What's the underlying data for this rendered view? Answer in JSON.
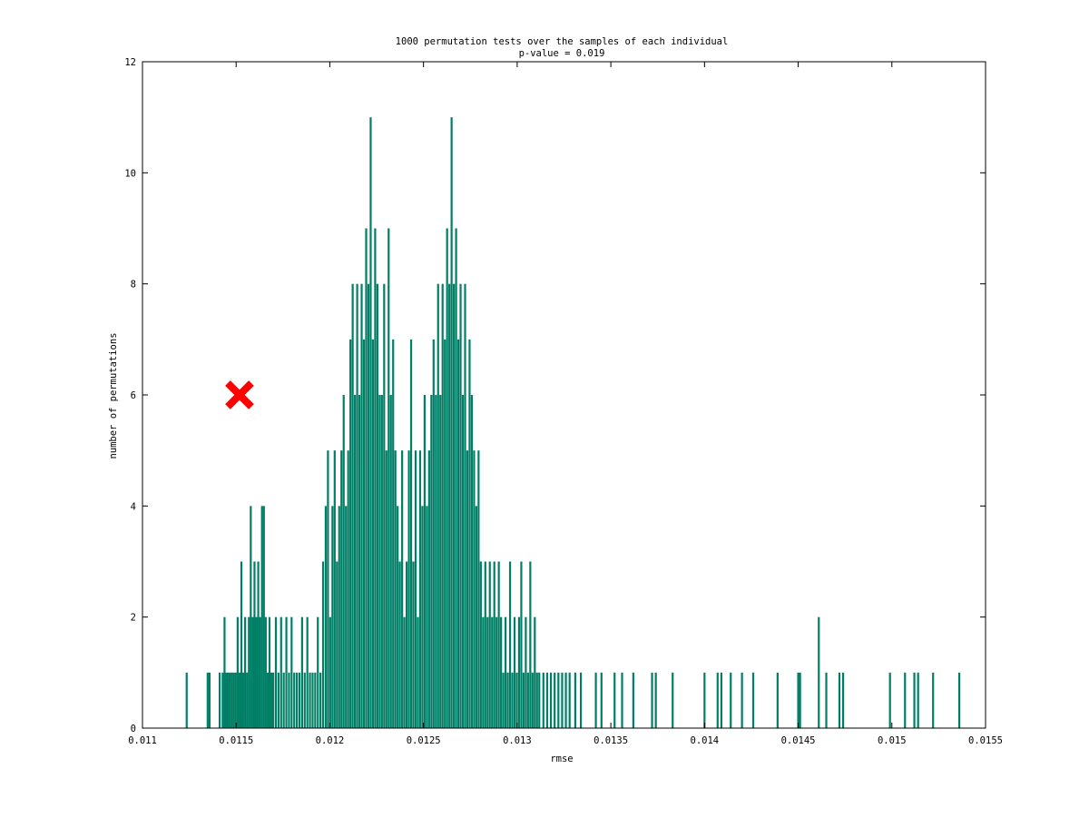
{
  "chart_data": {
    "type": "histogram",
    "title": "1000 permutation tests over the samples of each individual",
    "subtitle": "p-value = 0.019",
    "xlabel": "rmse",
    "ylabel": "number of permutations",
    "xlim": [
      0.011,
      0.0155
    ],
    "ylim": [
      0,
      12
    ],
    "x_ticks": [
      "0.011",
      "0.0115",
      "0.012",
      "0.0125",
      "0.013",
      "0.0135",
      "0.014",
      "0.0145",
      "0.015",
      "0.0155"
    ],
    "y_ticks": [
      "0",
      "2",
      "4",
      "6",
      "8",
      "10",
      "12"
    ],
    "grid": false,
    "bar_color": "#007f66",
    "marker": {
      "shape": "x",
      "color": "#ff0000",
      "x": 0.011518,
      "y": 6
    },
    "bars": [
      [
        0.011236,
        1
      ],
      [
        0.011348,
        1
      ],
      [
        0.011358,
        1
      ],
      [
        0.011412,
        1
      ],
      [
        0.011428,
        1
      ],
      [
        0.011438,
        2
      ],
      [
        0.011448,
        1
      ],
      [
        0.011458,
        1
      ],
      [
        0.011468,
        1
      ],
      [
        0.011478,
        1
      ],
      [
        0.011488,
        1
      ],
      [
        0.011498,
        1
      ],
      [
        0.011508,
        2
      ],
      [
        0.011518,
        1
      ],
      [
        0.011528,
        3
      ],
      [
        0.011538,
        1
      ],
      [
        0.011548,
        2
      ],
      [
        0.011558,
        1
      ],
      [
        0.011568,
        2
      ],
      [
        0.011578,
        4
      ],
      [
        0.011588,
        2
      ],
      [
        0.011598,
        3
      ],
      [
        0.011608,
        2
      ],
      [
        0.011618,
        3
      ],
      [
        0.011628,
        2
      ],
      [
        0.011638,
        4
      ],
      [
        0.011648,
        4
      ],
      [
        0.011658,
        2
      ],
      [
        0.011668,
        1
      ],
      [
        0.011678,
        2
      ],
      [
        0.011688,
        1
      ],
      [
        0.011698,
        1
      ],
      [
        0.011712,
        2
      ],
      [
        0.011726,
        1
      ],
      [
        0.01174,
        2
      ],
      [
        0.011754,
        1
      ],
      [
        0.011768,
        2
      ],
      [
        0.011782,
        1
      ],
      [
        0.011796,
        2
      ],
      [
        0.01181,
        1
      ],
      [
        0.011824,
        1
      ],
      [
        0.011838,
        1
      ],
      [
        0.011852,
        2
      ],
      [
        0.011866,
        1
      ],
      [
        0.01188,
        2
      ],
      [
        0.011894,
        1
      ],
      [
        0.011908,
        1
      ],
      [
        0.011922,
        1
      ],
      [
        0.011936,
        2
      ],
      [
        0.01195,
        1
      ],
      [
        0.011964,
        3
      ],
      [
        0.011978,
        4
      ],
      [
        0.01199,
        5
      ],
      [
        0.012002,
        2
      ],
      [
        0.012014,
        4
      ],
      [
        0.012026,
        5
      ],
      [
        0.012038,
        3
      ],
      [
        0.01205,
        4
      ],
      [
        0.012062,
        5
      ],
      [
        0.012074,
        6
      ],
      [
        0.012086,
        4
      ],
      [
        0.012098,
        5
      ],
      [
        0.01211,
        7
      ],
      [
        0.012122,
        8
      ],
      [
        0.012134,
        6
      ],
      [
        0.012146,
        8
      ],
      [
        0.012158,
        6
      ],
      [
        0.01217,
        8
      ],
      [
        0.012182,
        7
      ],
      [
        0.012194,
        9
      ],
      [
        0.012206,
        8
      ],
      [
        0.012218,
        11
      ],
      [
        0.01223,
        7
      ],
      [
        0.012242,
        9
      ],
      [
        0.012254,
        8
      ],
      [
        0.012266,
        6
      ],
      [
        0.012278,
        6
      ],
      [
        0.01229,
        8
      ],
      [
        0.012302,
        5
      ],
      [
        0.012314,
        9
      ],
      [
        0.012326,
        6
      ],
      [
        0.012338,
        7
      ],
      [
        0.01235,
        5
      ],
      [
        0.012362,
        4
      ],
      [
        0.012374,
        3
      ],
      [
        0.012386,
        5
      ],
      [
        0.012398,
        2
      ],
      [
        0.01241,
        3
      ],
      [
        0.012422,
        5
      ],
      [
        0.012434,
        7
      ],
      [
        0.012446,
        3
      ],
      [
        0.012458,
        5
      ],
      [
        0.01247,
        2
      ],
      [
        0.012482,
        5
      ],
      [
        0.012494,
        4
      ],
      [
        0.012506,
        6
      ],
      [
        0.012518,
        4
      ],
      [
        0.01253,
        5
      ],
      [
        0.012542,
        6
      ],
      [
        0.012554,
        7
      ],
      [
        0.012566,
        6
      ],
      [
        0.012578,
        8
      ],
      [
        0.01259,
        6
      ],
      [
        0.012602,
        8
      ],
      [
        0.012614,
        7
      ],
      [
        0.012626,
        9
      ],
      [
        0.012638,
        8
      ],
      [
        0.01265,
        11
      ],
      [
        0.012662,
        8
      ],
      [
        0.012674,
        9
      ],
      [
        0.012686,
        7
      ],
      [
        0.012698,
        8
      ],
      [
        0.01271,
        6
      ],
      [
        0.012722,
        8
      ],
      [
        0.012734,
        5
      ],
      [
        0.012746,
        7
      ],
      [
        0.012758,
        6
      ],
      [
        0.01277,
        5
      ],
      [
        0.012782,
        4
      ],
      [
        0.012794,
        5
      ],
      [
        0.012806,
        3
      ],
      [
        0.012818,
        2
      ],
      [
        0.01283,
        3
      ],
      [
        0.012842,
        2
      ],
      [
        0.012854,
        3
      ],
      [
        0.012866,
        2
      ],
      [
        0.012878,
        3
      ],
      [
        0.01289,
        2
      ],
      [
        0.012902,
        3
      ],
      [
        0.012914,
        2
      ],
      [
        0.012926,
        1
      ],
      [
        0.012938,
        2
      ],
      [
        0.01295,
        1
      ],
      [
        0.012962,
        3
      ],
      [
        0.012974,
        1
      ],
      [
        0.012986,
        2
      ],
      [
        0.012998,
        1
      ],
      [
        0.01301,
        2
      ],
      [
        0.013022,
        3
      ],
      [
        0.013034,
        1
      ],
      [
        0.013046,
        2
      ],
      [
        0.013058,
        1
      ],
      [
        0.01307,
        3
      ],
      [
        0.013082,
        1
      ],
      [
        0.013094,
        2
      ],
      [
        0.013106,
        1
      ],
      [
        0.013118,
        1
      ],
      [
        0.01314,
        1
      ],
      [
        0.01316,
        1
      ],
      [
        0.01318,
        1
      ],
      [
        0.0132,
        1
      ],
      [
        0.01322,
        1
      ],
      [
        0.01324,
        1
      ],
      [
        0.01326,
        1
      ],
      [
        0.01328,
        1
      ],
      [
        0.01331,
        1
      ],
      [
        0.01334,
        1
      ],
      [
        0.01342,
        1
      ],
      [
        0.01345,
        1
      ],
      [
        0.01352,
        1
      ],
      [
        0.01356,
        1
      ],
      [
        0.01362,
        1
      ],
      [
        0.01372,
        1
      ],
      [
        0.01374,
        1
      ],
      [
        0.01383,
        1
      ],
      [
        0.014,
        1
      ],
      [
        0.01407,
        1
      ],
      [
        0.01409,
        1
      ],
      [
        0.01414,
        1
      ],
      [
        0.0142,
        1
      ],
      [
        0.01426,
        1
      ],
      [
        0.01439,
        1
      ],
      [
        0.0145,
        1
      ],
      [
        0.01451,
        1
      ],
      [
        0.01461,
        2
      ],
      [
        0.01465,
        1
      ],
      [
        0.01472,
        1
      ],
      [
        0.01474,
        1
      ],
      [
        0.01499,
        1
      ],
      [
        0.01507,
        1
      ],
      [
        0.01512,
        1
      ],
      [
        0.01514,
        1
      ],
      [
        0.01522,
        1
      ],
      [
        0.01536,
        1
      ]
    ]
  }
}
